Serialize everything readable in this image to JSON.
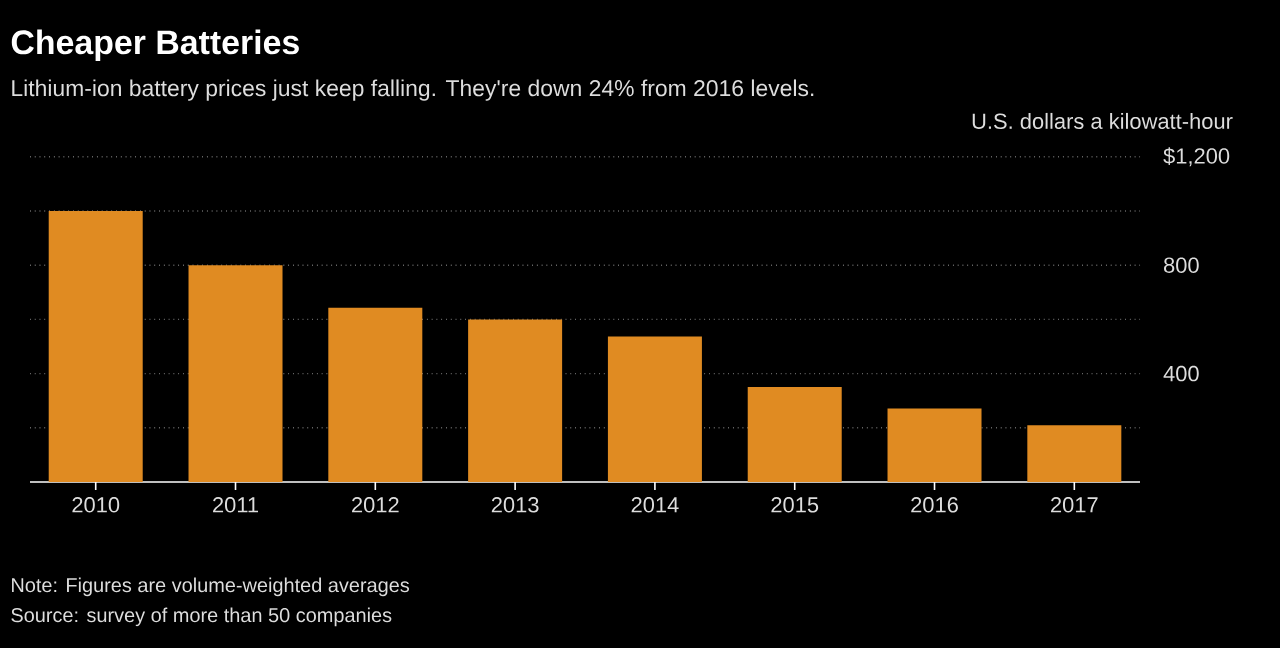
{
  "chart_data": {
    "type": "bar",
    "title": "Cheaper Batteries",
    "subtitle": "Lithium-ion battery prices just keep falling. They're down 24% from 2016 levels.",
    "categories": [
      "2010",
      "2011",
      "2012",
      "2013",
      "2014",
      "2015",
      "2016",
      "2017"
    ],
    "values": [
      1000,
      800,
      643,
      600,
      537,
      351,
      271,
      209
    ],
    "color": "#e08b22",
    "ylim": [
      0,
      1200
    ],
    "yticks": [
      {
        "value": 200,
        "label": null
      },
      400,
      {
        "value": 600,
        "label": null
      },
      800,
      {
        "value": 1000,
        "label": null
      },
      {
        "value": 1200,
        "label": "$1,200"
      }
    ],
    "ylabel": "U.S. dollars a kilowatt-hour",
    "grid": "y",
    "annotations": [
      "Note: Figures are volume-weighted averages",
      "Source: survey of more than 50 companies"
    ]
  }
}
